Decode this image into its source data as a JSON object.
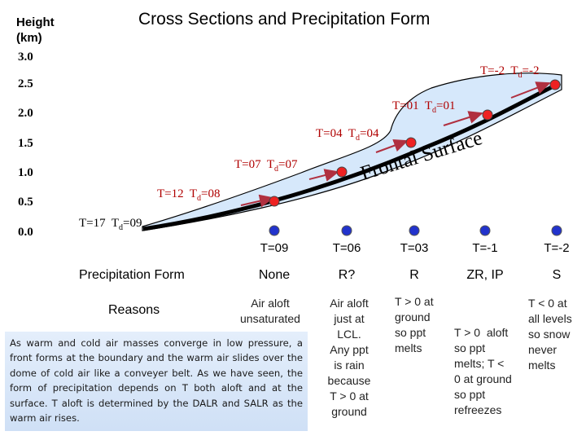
{
  "title": "Cross Sections and Precipitation Form",
  "y_axis": {
    "label_line1": "Height",
    "label_line2": "(km)",
    "ticks": [
      "3.0",
      "2.5",
      "2.0",
      "1.5",
      "1.0",
      "0.5",
      "0.0"
    ]
  },
  "surface_label": "Frontal Surface",
  "aloft_labels": [
    {
      "t": "T=-2",
      "td": "T",
      "td_sub": "d",
      "td_val": "=-2"
    },
    {
      "t": "T=01",
      "td": "T",
      "td_sub": "d",
      "td_val": "=01"
    },
    {
      "t": "T=04",
      "td": "T",
      "td_sub": "d",
      "td_val": "=04"
    },
    {
      "t": "T=07",
      "td": "T",
      "td_sub": "d",
      "td_val": "=07"
    },
    {
      "t": "T=12",
      "td": "T",
      "td_sub": "d",
      "td_val": "=08"
    },
    {
      "t": "T=17",
      "td": "T",
      "td_sub": "d",
      "td_val": "=09"
    }
  ],
  "ground_temps": [
    "T=09",
    "T=06",
    "T=03",
    "T=-1",
    "T=-2"
  ],
  "precip_row_label": "Precipitation Form",
  "precip_forms": [
    "None",
    "R?",
    "R",
    "ZR, IP",
    "S"
  ],
  "reasons_row_label": "Reasons",
  "reasons": [
    [
      "Air aloft",
      "unsaturated"
    ],
    [
      "Air aloft",
      "just at",
      "LCL.",
      "Any ppt",
      "is rain",
      "because",
      "T > 0 at",
      "ground"
    ],
    [
      "T > 0 at",
      "ground",
      "so ppt",
      "melts"
    ],
    [
      "T > 0  aloft",
      "so ppt",
      "melts; T <",
      "0 at ground",
      "so ppt",
      "refreezes"
    ],
    [
      "T < 0 at",
      "all levels",
      "so snow",
      "never",
      "melts"
    ]
  ],
  "note": "As warm and cold air masses converge in low pressure, a front forms at the boundary and the warm air slides over the dome of cold air like a conveyer belt. As we have seen, the form of precipitation depends on T both aloft and at the surface. T aloft is determined by the DALR and SALR as the warm air rises.",
  "colors": {
    "cold_dome_fill": "#d6e8fb",
    "surface_line": "#000000",
    "temp_label": "#b00000",
    "arrow": "#b03040",
    "red_point": "#ee2222",
    "blue_point": "#2233cc",
    "note_bg": "#dbe8f8"
  }
}
